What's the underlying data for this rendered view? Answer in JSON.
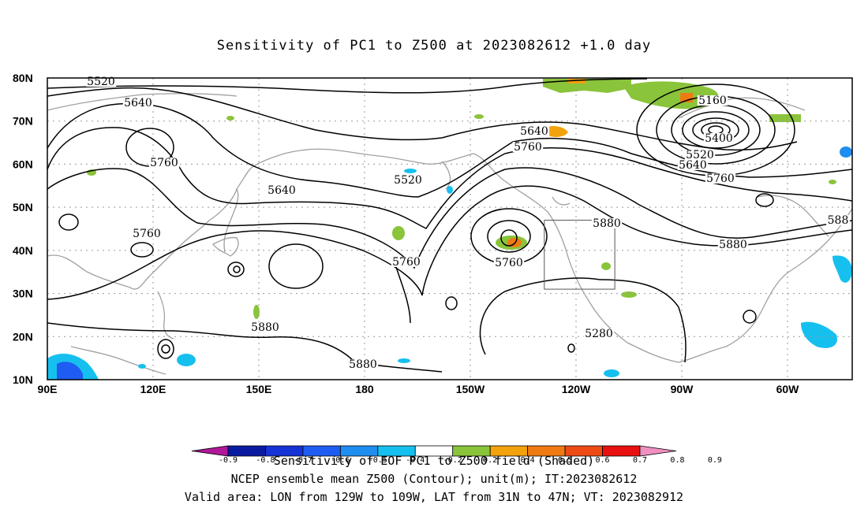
{
  "title": "Sensitivity of PC1 to Z500 at 2023082612 +1.0 day",
  "map": {
    "lat_labels": [
      "80N",
      "70N",
      "60N",
      "50N",
      "40N",
      "30N",
      "20N",
      "10N"
    ],
    "lon_labels": [
      "90E",
      "120E",
      "150E",
      "180",
      "150W",
      "120W",
      "90W",
      "60W"
    ],
    "contour_labels": [
      "5520",
      "5640",
      "5760",
      "5640",
      "5760",
      "5520",
      "5640",
      "5760",
      "5760",
      "5760",
      "5880",
      "5880",
      "5880",
      "5880",
      "5280",
      "5160",
      "5400",
      "5520",
      "5640",
      "5760",
      "588"
    ],
    "valid_area": {
      "lon_from": "129W",
      "lon_to": "109W",
      "lat_from": "31N",
      "lat_to": "47N"
    }
  },
  "colorbar": {
    "labels": [
      "-0.9",
      "-0.8",
      "-0.7",
      "-0.6",
      "-0.5",
      "-0.4",
      "-0.2",
      "0.2",
      "0.4",
      "0.5",
      "0.6",
      "0.7",
      "0.8",
      "0.9"
    ],
    "colors": [
      "#b0179a",
      "#0a1aa0",
      "#1633d6",
      "#1f5cf2",
      "#1e8ef0",
      "#16c0ee",
      "#ffffff",
      "#8ac43a",
      "#f2a20c",
      "#f07a12",
      "#ee4a14",
      "#e81010",
      "#f090c0"
    ],
    "caption": "Sensitivity of EOF PC1 to Z500 field (Shaded)"
  },
  "footer": {
    "line2": "NCEP ensemble mean Z500 (Contour); unit(m); IT:2023082612",
    "line3": "Valid area: LON from 129W to 109W, LAT from 31N to 47N; VT: 2023082912"
  },
  "colors": {
    "contour": "#000000",
    "coast": "#a0a0a0",
    "grid": "#9a9a9a",
    "positive_shade": "#8ac43a",
    "negative_shade": "#16c0ee"
  }
}
